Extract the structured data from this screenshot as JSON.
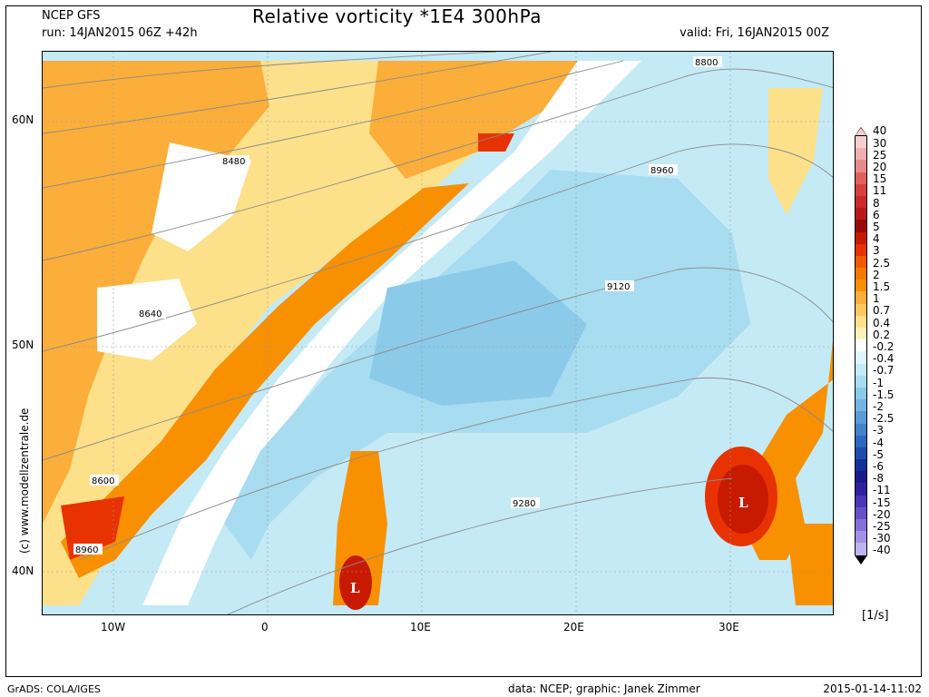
{
  "header": {
    "model": "NCEP GFS",
    "run": "run: 14JAN2015 06Z +42h",
    "title": "Relative vorticity *1E4 300hPa",
    "valid": "valid: Fri, 16JAN2015 00Z"
  },
  "footer": {
    "left": "GrADS: COLA/IGES",
    "middle": "data: NCEP; graphic: Janek Zimmer",
    "right": "2015-01-14-11:02"
  },
  "watermark": "(c)  www.modellzentrale.de",
  "map": {
    "lat_labels": [
      "60N",
      "50N",
      "40N"
    ],
    "lon_labels": [
      "10W",
      "0",
      "10E",
      "20E",
      "30E"
    ],
    "contour_labels": [
      "8800",
      "8480",
      "8960",
      "8640",
      "9120",
      "8600",
      "8960",
      "9280"
    ],
    "low_markers": [
      "L",
      "L"
    ]
  },
  "legend": {
    "units": "[1/s]",
    "levels": [
      "40",
      "30",
      "25",
      "20",
      "15",
      "11",
      "8",
      "6",
      "5",
      "4",
      "3",
      "2.5",
      "2",
      "1.5",
      "1",
      "0.7",
      "0.4",
      "0.2",
      "-0.2",
      "-0.4",
      "-0.7",
      "-1",
      "-1.5",
      "-2",
      "-2.5",
      "-3",
      "-4",
      "-5",
      "-6",
      "-8",
      "-11",
      "-15",
      "-20",
      "-25",
      "-30",
      "-40"
    ],
    "colors": [
      "#f6d0d0",
      "#f0b0b0",
      "#e88a8a",
      "#e06060",
      "#d84040",
      "#cc2a2a",
      "#b81818",
      "#9a0a0a",
      "#c81a00",
      "#e83200",
      "#f05a00",
      "#f57a00",
      "#f89000",
      "#fbae3a",
      "#fcc860",
      "#fde08a",
      "#fef2bc",
      "#ffffff",
      "#dff4fb",
      "#c4eaf6",
      "#a8dcf0",
      "#8ccaea",
      "#72b4e2",
      "#5a9cd8",
      "#4482cc",
      "#2e68be",
      "#1e4cae",
      "#12309a",
      "#1a1a8a",
      "#3020a0",
      "#4a36b8",
      "#6650c8",
      "#8470d8",
      "#a290e6",
      "#c0b4f0"
    ]
  }
}
